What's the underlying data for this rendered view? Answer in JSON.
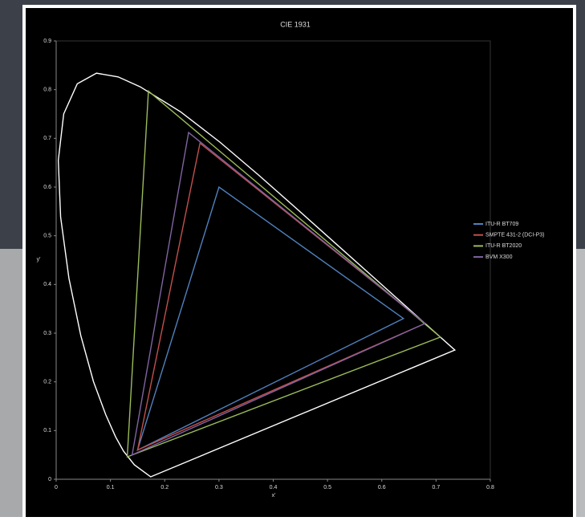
{
  "chart_data": {
    "type": "line",
    "title": "CIE 1931",
    "x_label": "x'",
    "y_label": "y'",
    "xlim": [
      0,
      0.8
    ],
    "ylim": [
      0,
      0.9
    ],
    "xticks": [
      0,
      0.1,
      0.2,
      0.3,
      0.4,
      0.5,
      0.6,
      0.7,
      0.8
    ],
    "yticks": [
      0,
      0.1,
      0.2,
      0.3,
      0.4,
      0.5,
      0.6,
      0.7,
      0.8,
      0.9
    ],
    "closed": true,
    "legend": "right",
    "locus": {
      "color": "#ffffff",
      "x": [
        0.1741,
        0.144,
        0.1241,
        0.1096,
        0.0913,
        0.0687,
        0.0454,
        0.0235,
        0.0082,
        0.0039,
        0.0139,
        0.0389,
        0.0743,
        0.1142,
        0.1547,
        0.2296,
        0.3016,
        0.3731,
        0.4441,
        0.5125,
        0.5752,
        0.627,
        0.6915,
        0.7347
      ],
      "y": [
        0.005,
        0.0297,
        0.0578,
        0.0868,
        0.1327,
        0.2007,
        0.295,
        0.4127,
        0.5384,
        0.6548,
        0.7502,
        0.812,
        0.8338,
        0.8262,
        0.8059,
        0.7543,
        0.6923,
        0.6245,
        0.5547,
        0.4866,
        0.4242,
        0.3725,
        0.3083,
        0.2653
      ]
    },
    "series": [
      {
        "name": "ITU-R BT709",
        "color": "#4f81bd",
        "x": [
          0.64,
          0.3,
          0.15
        ],
        "y": [
          0.33,
          0.6,
          0.06
        ]
      },
      {
        "name": "SMPTE 431-2 (DCI-P3)",
        "color": "#c0504d",
        "x": [
          0.68,
          0.265,
          0.15
        ],
        "y": [
          0.32,
          0.69,
          0.06
        ]
      },
      {
        "name": "ITU-R BT2020",
        "color": "#9bbb59",
        "x": [
          0.708,
          0.17,
          0.131
        ],
        "y": [
          0.292,
          0.797,
          0.046
        ]
      },
      {
        "name": "BVM X300",
        "color": "#8064a2",
        "x": [
          0.68,
          0.244,
          0.14
        ],
        "y": [
          0.32,
          0.712,
          0.05
        ]
      }
    ]
  }
}
